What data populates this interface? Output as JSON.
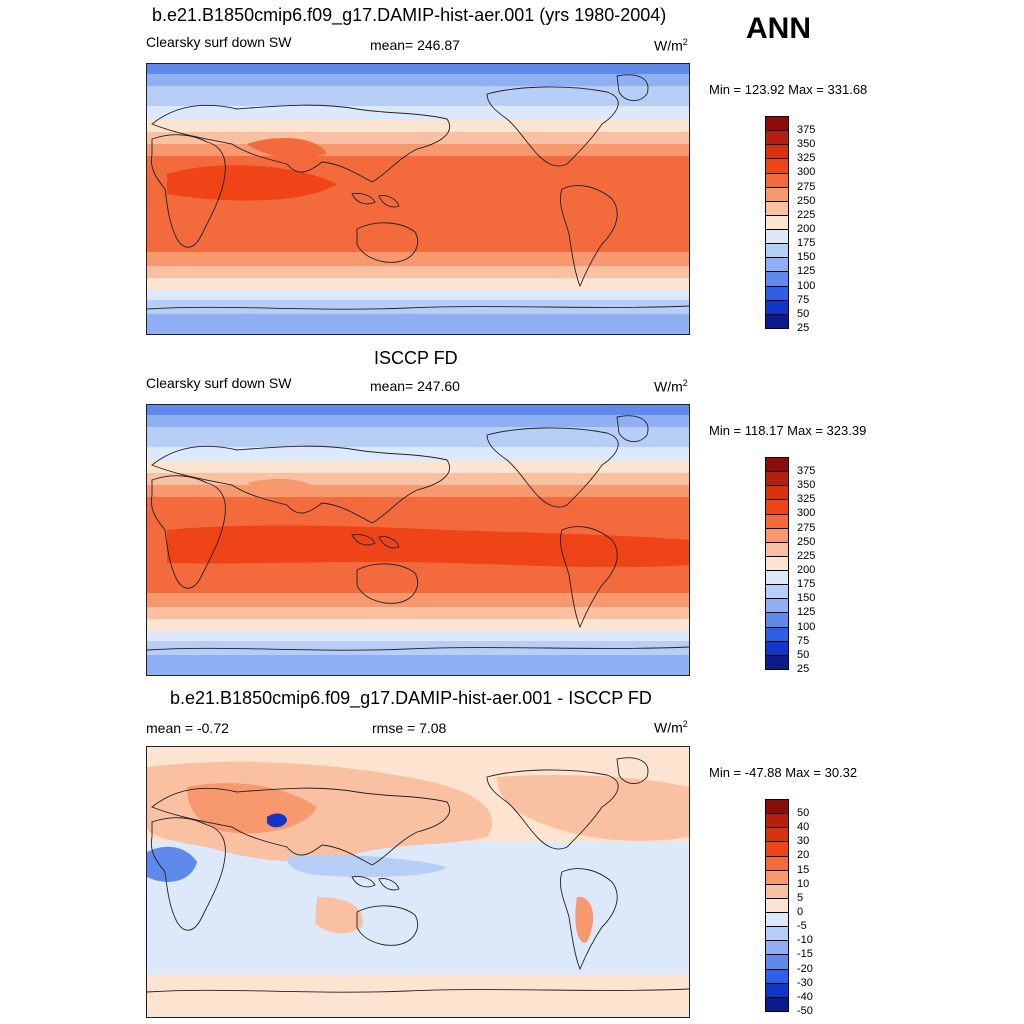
{
  "season": "ANN",
  "panels": [
    {
      "title": "b.e21.B1850cmip6.f09_g17.DAMIP-hist-aer.001 (yrs 1980-2004)",
      "left_label": "Clearsky surf down SW",
      "center_label": "mean= 246.87",
      "units_base": "W/m",
      "units_sup": "2",
      "minmax": "Min = 123.92 Max = 331.68"
    },
    {
      "title": "ISCCP FD",
      "left_label": "Clearsky surf down SW",
      "center_label": "mean= 247.60",
      "units_base": "W/m",
      "units_sup": "2",
      "minmax": "Min = 118.17 Max = 323.39"
    },
    {
      "title": "b.e21.B1850cmip6.f09_g17.DAMIP-hist-aer.001 - ISCCP FD",
      "left_label": "mean =  -0.72",
      "center_label": "rmse =   7.08",
      "units_base": "W/m",
      "units_sup": "2",
      "minmax": "Min = -47.88 Max =  30.32"
    }
  ],
  "chart_data": [
    {
      "type": "heatmap",
      "title": "b.e21.B1850cmip6.f09_g17.DAMIP-hist-aer.001 (yrs 1980-2004)",
      "variable": "Clearsky surf down SW",
      "units": "W/m2",
      "mean": 246.87,
      "min": 123.92,
      "max": 331.68,
      "colorbar_levels": [
        "375",
        "350",
        "325",
        "300",
        "275",
        "250",
        "225",
        "200",
        "175",
        "150",
        "125",
        "100",
        "75",
        "50",
        "25"
      ],
      "colorbar_colors": [
        "#8a0d0b",
        "#b32010",
        "#d6320f",
        "#ee4418",
        "#f36b3d",
        "#f7986f",
        "#fac0a2",
        "#fde4d1",
        "#dde9fb",
        "#b7cef7",
        "#8fb0f2",
        "#5f8aec",
        "#2f5fe6",
        "#1336c9",
        "#0b1b8c"
      ]
    },
    {
      "type": "heatmap",
      "title": "ISCCP FD",
      "variable": "Clearsky surf down SW",
      "units": "W/m2",
      "mean": 247.6,
      "min": 118.17,
      "max": 323.39,
      "colorbar_levels": [
        "375",
        "350",
        "325",
        "300",
        "275",
        "250",
        "225",
        "200",
        "175",
        "150",
        "125",
        "100",
        "75",
        "50",
        "25"
      ],
      "colorbar_colors": [
        "#8a0d0b",
        "#b32010",
        "#d6320f",
        "#ee4418",
        "#f36b3d",
        "#f7986f",
        "#fac0a2",
        "#fde4d1",
        "#dde9fb",
        "#b7cef7",
        "#8fb0f2",
        "#5f8aec",
        "#2f5fe6",
        "#1336c9",
        "#0b1b8c"
      ]
    },
    {
      "type": "heatmap",
      "title": "b.e21.B1850cmip6.f09_g17.DAMIP-hist-aer.001 - ISCCP FD",
      "mean": -0.72,
      "rmse": 7.08,
      "units": "W/m2",
      "min": -47.88,
      "max": 30.32,
      "colorbar_levels": [
        "50",
        "40",
        "30",
        "20",
        "15",
        "10",
        "5",
        "0",
        "-5",
        "-10",
        "-15",
        "-20",
        "-30",
        "-40",
        "-50"
      ],
      "colorbar_colors": [
        "#8a0d0b",
        "#b32010",
        "#d6320f",
        "#ee4418",
        "#f36b3d",
        "#f7986f",
        "#fac0a2",
        "#fde4d1",
        "#dde9fb",
        "#b7cef7",
        "#8fb0f2",
        "#5f8aec",
        "#2f5fe6",
        "#1336c9",
        "#0b1b8c"
      ]
    }
  ]
}
